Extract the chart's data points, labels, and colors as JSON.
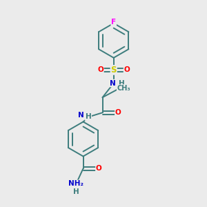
{
  "background_color": "#ebebeb",
  "fig_size": [
    3.0,
    3.0
  ],
  "dpi": 100,
  "atom_colors": {
    "C": "#3d7d7d",
    "N": "#0000cc",
    "O": "#ff0000",
    "S": "#cccc00",
    "F": "#ff00ff",
    "H": "#3d7d7d"
  },
  "bond_color": "#3d7d7d",
  "bond_width": 1.4
}
